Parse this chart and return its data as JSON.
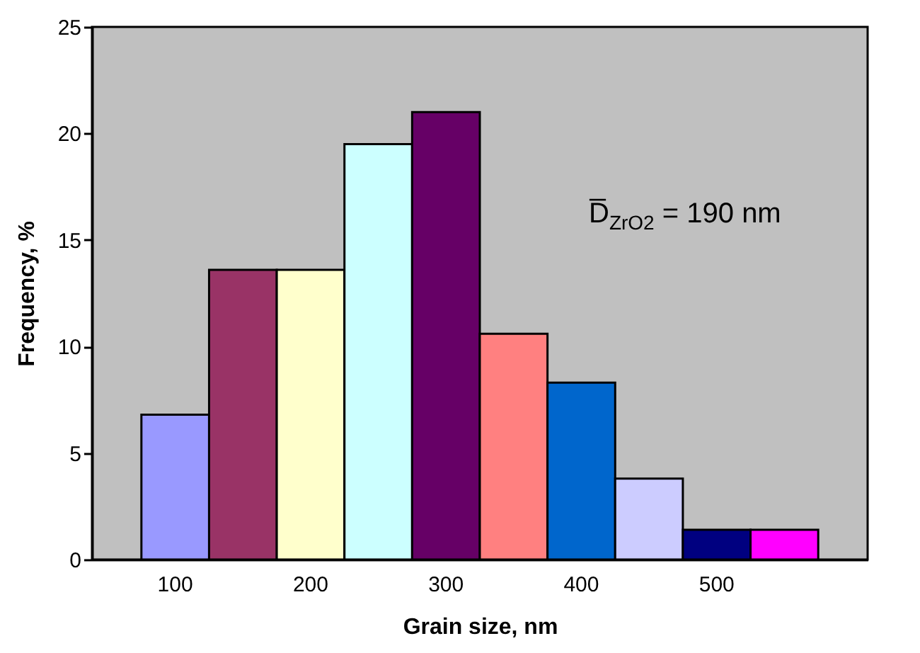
{
  "chart_data": {
    "type": "bar",
    "xlabel": "Grain size, nm",
    "ylabel": "Frequency, %",
    "categories": [
      "100",
      null,
      "200",
      null,
      "300",
      null,
      "400",
      null,
      "500",
      null
    ],
    "values": [
      6.8,
      13.6,
      13.6,
      19.5,
      21.0,
      10.6,
      8.3,
      3.8,
      1.4,
      1.4
    ],
    "colors": [
      "#9999ff",
      "#993366",
      "#ffffcc",
      "#ccffff",
      "#660066",
      "#ff8080",
      "#0066cc",
      "#ccccff",
      "#000080",
      "#ff00ff"
    ],
    "ylim": [
      0,
      25
    ],
    "yticks": [
      0,
      5,
      10,
      15,
      20,
      25
    ],
    "annotations": [
      "D̅$_{ZrO2}$ = 190 nm"
    ]
  }
}
